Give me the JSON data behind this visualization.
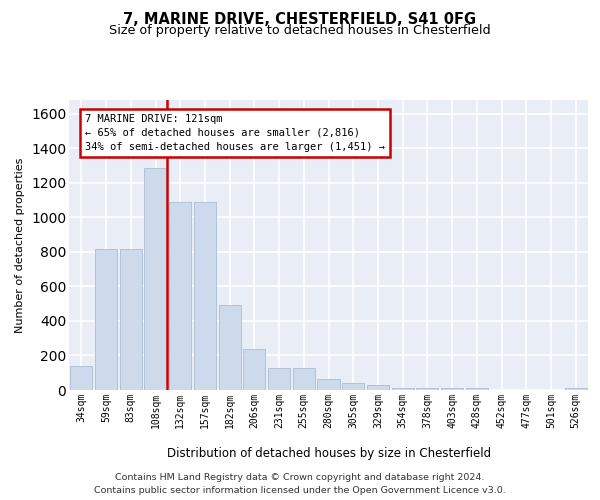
{
  "title": "7, MARINE DRIVE, CHESTERFIELD, S41 0FG",
  "subtitle": "Size of property relative to detached houses in Chesterfield",
  "xlabel": "Distribution of detached houses by size in Chesterfield",
  "ylabel": "Number of detached properties",
  "categories": [
    "34sqm",
    "59sqm",
    "83sqm",
    "108sqm",
    "132sqm",
    "157sqm",
    "182sqm",
    "206sqm",
    "231sqm",
    "255sqm",
    "280sqm",
    "305sqm",
    "329sqm",
    "354sqm",
    "378sqm",
    "403sqm",
    "428sqm",
    "452sqm",
    "477sqm",
    "501sqm",
    "526sqm"
  ],
  "values": [
    140,
    815,
    815,
    1285,
    1090,
    1090,
    490,
    235,
    130,
    130,
    65,
    38,
    28,
    14,
    14,
    14,
    14,
    0,
    0,
    0,
    14
  ],
  "bar_color": "#ccdaeb",
  "bar_edge_color": "#aabdd4",
  "red_line_x": 3.45,
  "annotation_line1": "7 MARINE DRIVE: 121sqm",
  "annotation_line2": "← 65% of detached houses are smaller (2,816)",
  "annotation_line3": "34% of semi-detached houses are larger (1,451) →",
  "annotation_box_facecolor": "#ffffff",
  "annotation_box_edgecolor": "#cc0000",
  "footer_text": "Contains HM Land Registry data © Crown copyright and database right 2024.\nContains public sector information licensed under the Open Government Licence v3.0.",
  "ylim_max": 1680,
  "plot_bg": "#e8edf6",
  "grid_color": "#ffffff",
  "yticks": [
    0,
    200,
    400,
    600,
    800,
    1000,
    1200,
    1400,
    1600
  ]
}
